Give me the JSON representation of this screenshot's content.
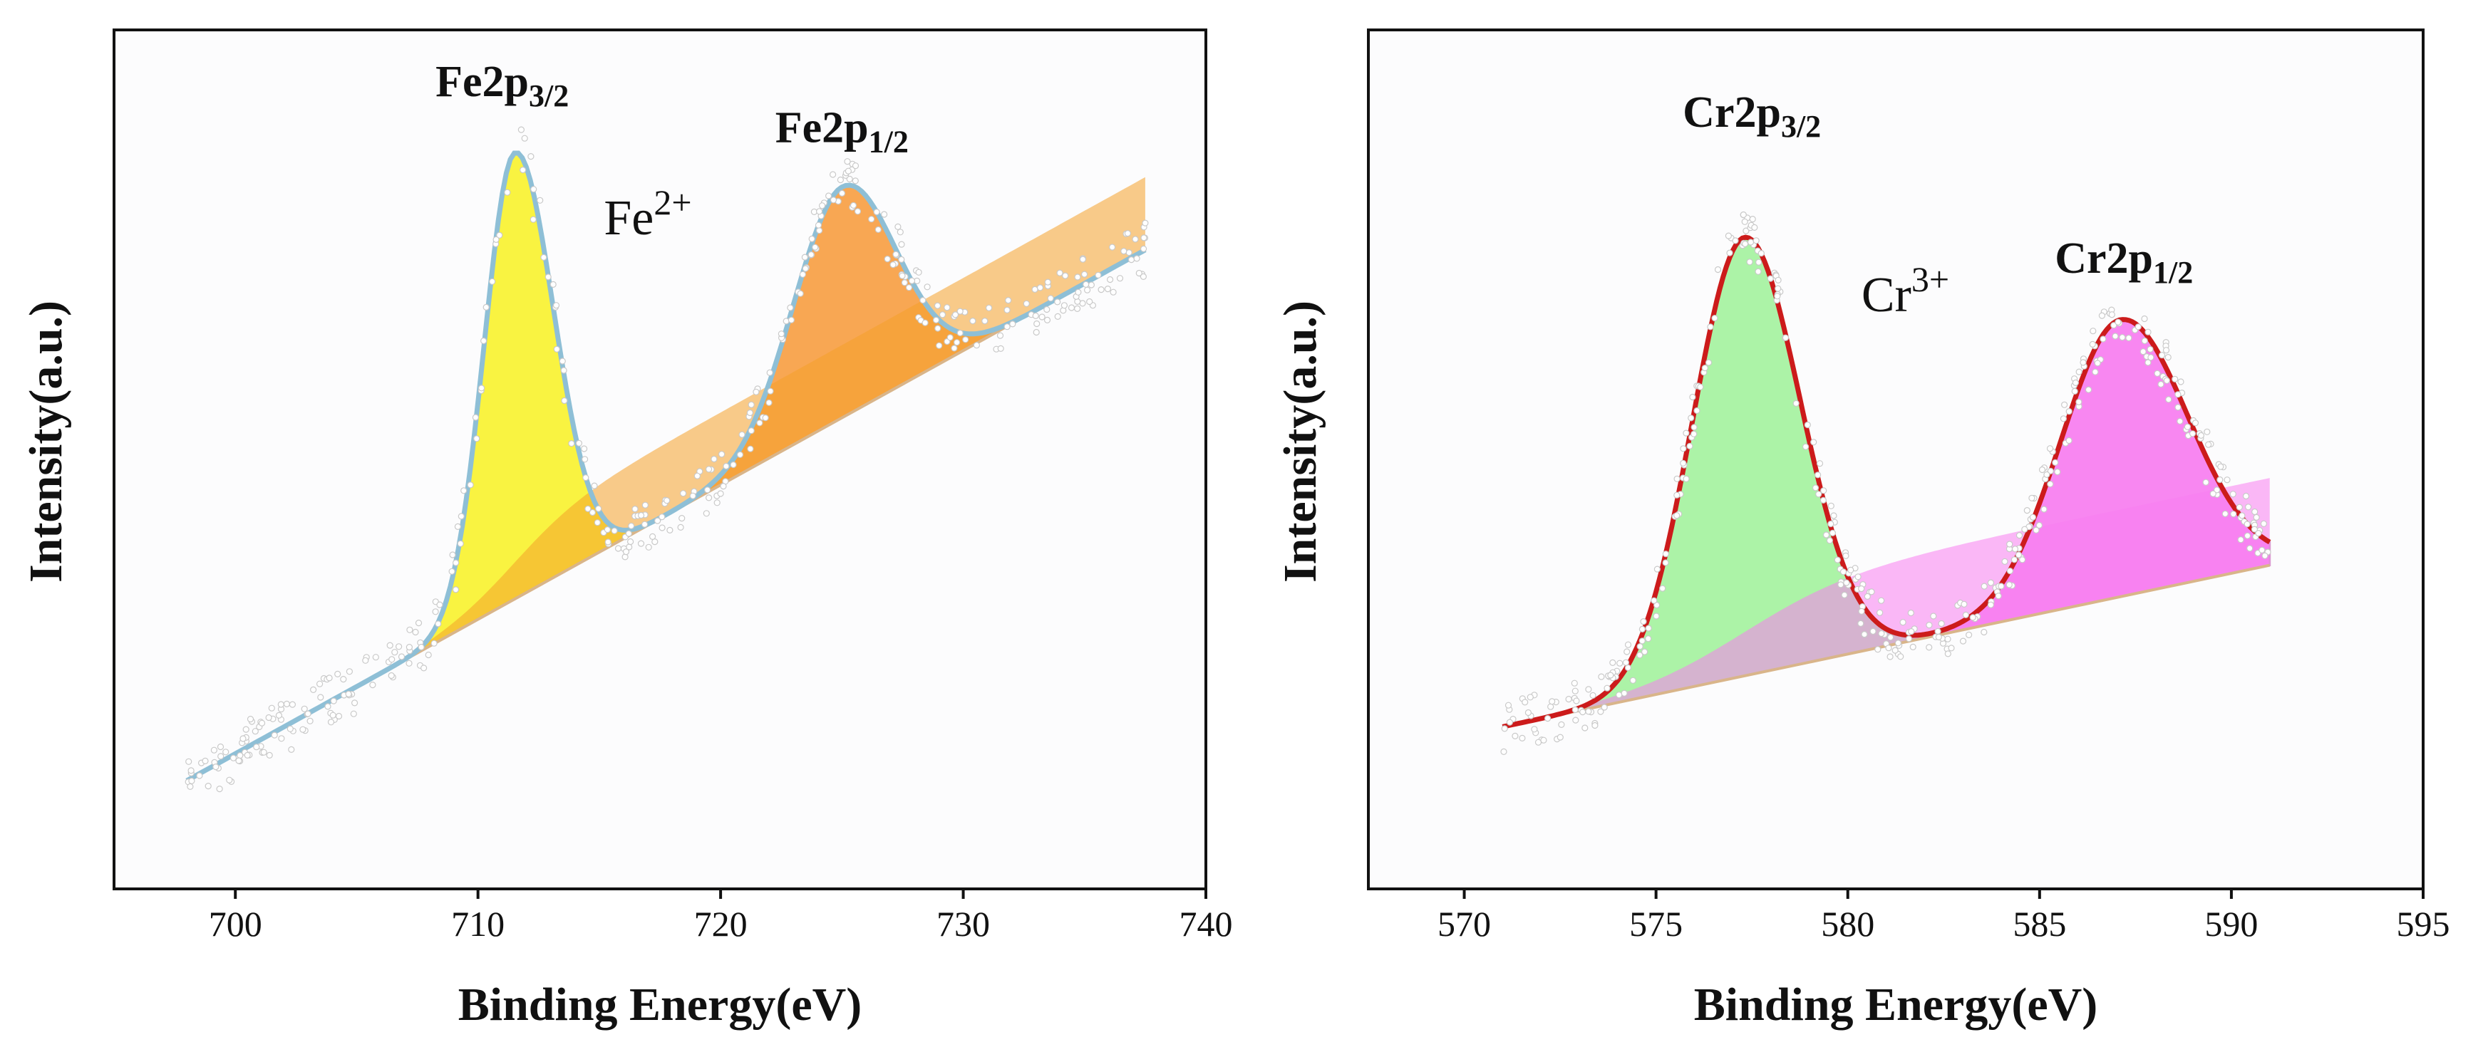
{
  "chart_data": [
    {
      "type": "scatter",
      "title": "",
      "xlabel": "Binding Energy(eV)",
      "ylabel": "Intensity(a.u.)",
      "xlim": [
        695,
        740
      ],
      "ylim": [
        0,
        100
      ],
      "xticks": [
        700,
        710,
        720,
        730,
        740
      ],
      "xtick_labels": [
        "700",
        "710",
        "720",
        "730",
        "740"
      ],
      "show_yticks": false,
      "grid": false,
      "data_range": [
        698,
        737.5
      ],
      "ion": {
        "base": "Fe",
        "sup": "2+",
        "x": 717,
        "y": 76
      },
      "background": {
        "kind": "linear",
        "start": [
          698,
          5
        ],
        "end": [
          737.5,
          74
        ]
      },
      "peaks": [
        {
          "name": "Fe2p3/2",
          "label_base": "Fe2p",
          "label_sub": "3/2",
          "center": 711.5,
          "height": 58,
          "sigma_left": 1.25,
          "sigma_right": 1.6,
          "fill": "#f9f231",
          "edge": "#d8c81a",
          "label_x": 711,
          "label_y": 94
        },
        {
          "name": "Fe2p1/2",
          "label_base": "Fe2p",
          "label_sub": "1/2",
          "center": 725,
          "height": 30,
          "sigma_left": 2.0,
          "sigma_right": 2.2,
          "fill": "#f7a044",
          "edge": "#e88a2a",
          "label_x": 725,
          "label_y": 88
        }
      ],
      "envelope_color": "#8ebfd6",
      "extra_fill": "#f4a02a"
    },
    {
      "type": "scatter",
      "title": "",
      "xlabel": "Binding Energy(eV)",
      "ylabel": "Intensity(a.u.)",
      "xlim": [
        567.5,
        595
      ],
      "ylim": [
        0,
        100
      ],
      "xticks": [
        570,
        575,
        580,
        585,
        590,
        595
      ],
      "xtick_labels": [
        "570",
        "575",
        "580",
        "585",
        "590",
        "595"
      ],
      "show_yticks": false,
      "grid": false,
      "data_range": [
        571,
        591
      ],
      "ion": {
        "base": "Cr",
        "sup": "3+",
        "x": 581.5,
        "y": 66
      },
      "background": {
        "kind": "linear",
        "start": [
          571,
          12
        ],
        "end": [
          591,
          33
        ]
      },
      "peaks": [
        {
          "name": "Cr2p3/2",
          "label_base": "Cr2p",
          "label_sub": "3/2",
          "center": 577.3,
          "height": 57,
          "sigma_left": 1.35,
          "sigma_right": 1.45,
          "fill": "#a5f2a0",
          "edge": "#8a6a3a",
          "label_x": 577.5,
          "label_y": 90
        },
        {
          "name": "Cr2p1/2",
          "label_base": "Cr2p",
          "label_sub": "1/2",
          "center": 587.1,
          "height": 36,
          "sigma_left": 1.55,
          "sigma_right": 1.75,
          "fill": "#f77df0",
          "edge": "#d99ad0",
          "label_x": 587.2,
          "label_y": 71
        }
      ],
      "envelope_color": "#cc1b1b",
      "extra_fill": "#f77df0"
    }
  ]
}
